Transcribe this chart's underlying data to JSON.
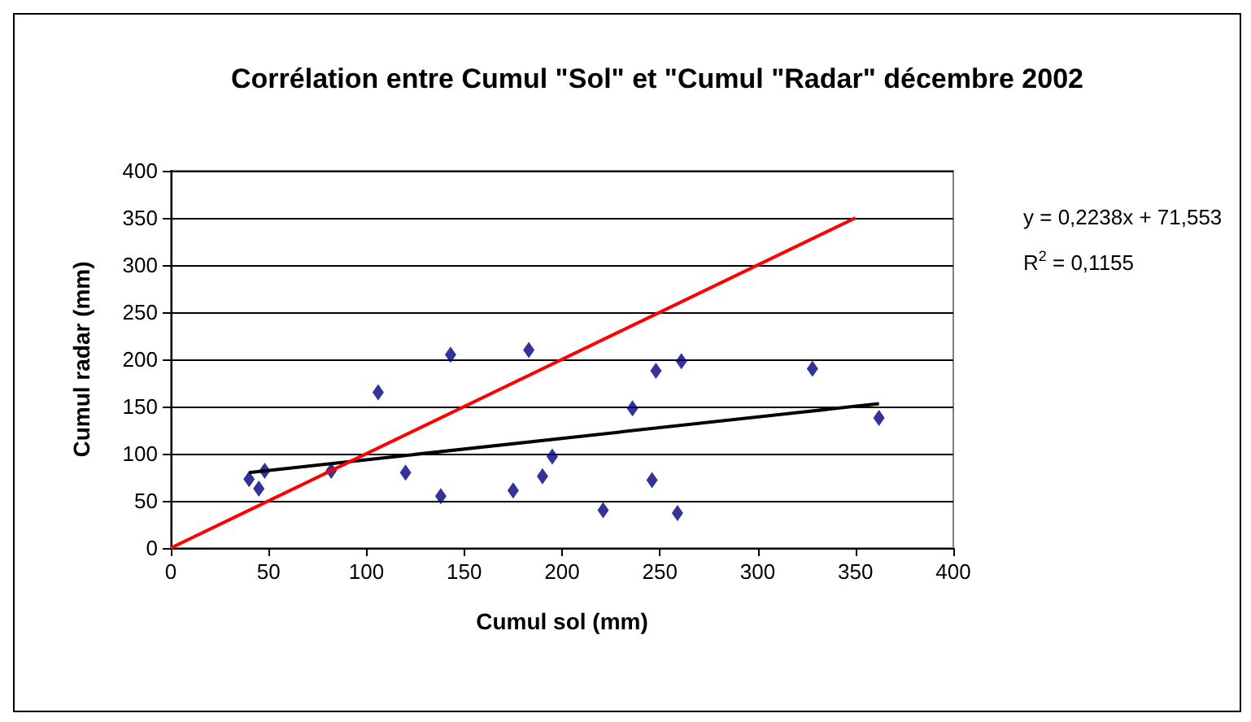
{
  "chart_data": {
    "type": "scatter",
    "title": "Corrélation entre Cumul \"Sol\" et \"Cumul \"Radar\" décembre 2002",
    "xlabel": "Cumul sol (mm)",
    "ylabel": "Cumul radar (mm)",
    "annotations": [
      "y = 0,2238x + 71,553",
      "R$^{2}$ = 0,1155"
    ],
    "series": [
      {
        "color": "#000080",
        "x": [
          40,
          45,
          48,
          82,
          106,
          120,
          138,
          143,
          175,
          183,
          190,
          195,
          221,
          236,
          246,
          248,
          259,
          261,
          328,
          362
        ],
        "values": [
          73,
          63,
          82,
          82,
          165,
          80,
          55,
          205,
          61,
          210,
          76,
          97,
          40,
          148,
          72,
          188,
          37,
          198,
          190,
          138
        ]
      },
      {
        "type": "line",
        "color": "#000000",
        "marker": "none",
        "x": [
          40,
          362
        ],
        "values": [
          80,
          153
        ]
      },
      {
        "type": "line",
        "color": "#ff0000",
        "marker": "none",
        "x": [
          0,
          350
        ],
        "values": [
          0,
          350
        ]
      }
    ],
    "marker": "diamond",
    "xlim": [
      0,
      400
    ],
    "xticks": [
      0,
      50,
      100,
      150,
      200,
      250,
      300,
      350,
      400
    ],
    "ylim": [
      0,
      400
    ],
    "yticks": [
      0,
      50,
      100,
      150,
      200,
      250,
      300,
      350,
      400
    ],
    "grid": "y"
  }
}
